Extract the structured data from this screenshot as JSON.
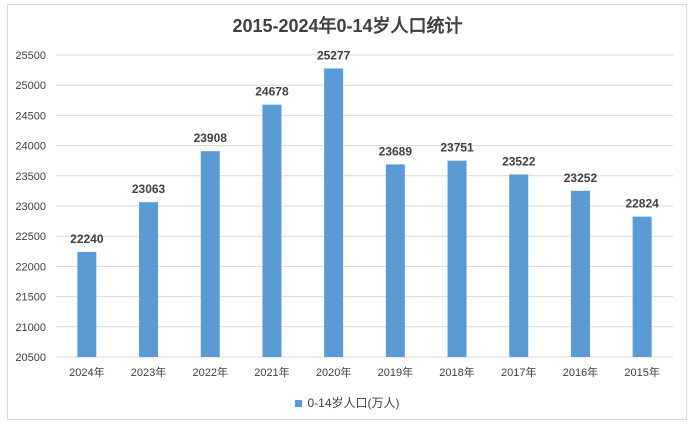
{
  "chart_data": {
    "type": "bar",
    "title": "2015-2024年0-14岁人口统计",
    "categories": [
      "2024年",
      "2023年",
      "2022年",
      "2021年",
      "2020年",
      "2019年",
      "2018年",
      "2017年",
      "2016年",
      "2015年"
    ],
    "series": [
      {
        "name": "0-14岁人口(万人)",
        "values": [
          22240,
          23063,
          23908,
          24678,
          25277,
          23689,
          23751,
          23522,
          23252,
          22824
        ]
      }
    ],
    "ylim": [
      20500,
      25500
    ],
    "yticks": [
      20500,
      21000,
      21500,
      22000,
      22500,
      23000,
      23500,
      24000,
      24500,
      25000,
      25500
    ],
    "grid": true,
    "legend": "bottom",
    "bar_color": "#5b9bd5"
  }
}
